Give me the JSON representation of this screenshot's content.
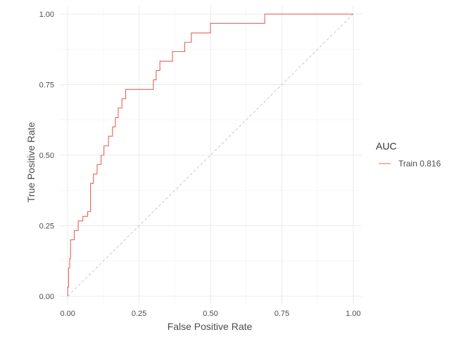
{
  "chart_data": {
    "type": "line",
    "title": "",
    "xlabel": "False Positive Rate",
    "ylabel": "True Positive Rate",
    "xlim": [
      -0.03,
      1.03
    ],
    "ylim": [
      -0.03,
      1.03
    ],
    "x_ticks": [
      0,
      0.25,
      0.5,
      0.75,
      1
    ],
    "y_ticks": [
      0,
      0.25,
      0.5,
      0.75,
      1
    ],
    "x_tick_labels": [
      "0.00",
      "0.25",
      "0.50",
      "0.75",
      "1.00"
    ],
    "y_tick_labels": [
      "0.00",
      "0.25",
      "0.50",
      "0.75",
      "1.00"
    ],
    "grid": true,
    "legend": {
      "title": "AUC",
      "position": "right",
      "entries": [
        "Train 0.816"
      ]
    },
    "reference_line": {
      "x": [
        0,
        1
      ],
      "y": [
        0,
        1
      ],
      "style": "dashed",
      "color": "#bdbdbd"
    },
    "series": [
      {
        "name": "Train 0.816",
        "color": "#e0655a",
        "x": [
          0,
          0,
          0.003,
          0.003,
          0.007,
          0.007,
          0.01,
          0.01,
          0.023,
          0.023,
          0.037,
          0.037,
          0.053,
          0.053,
          0.07,
          0.07,
          0.08,
          0.08,
          0.09,
          0.09,
          0.103,
          0.103,
          0.117,
          0.117,
          0.127,
          0.127,
          0.143,
          0.143,
          0.157,
          0.157,
          0.167,
          0.167,
          0.177,
          0.177,
          0.19,
          0.19,
          0.203,
          0.203,
          0.3,
          0.3,
          0.31,
          0.31,
          0.317,
          0.317,
          0.323,
          0.323,
          0.327,
          0.327,
          0.33,
          0.33,
          0.367,
          0.367,
          0.41,
          0.41,
          0.433,
          0.433,
          0.5,
          0.5,
          0.69,
          0.69,
          1.0
        ],
        "y": [
          0,
          0.033,
          0.033,
          0.1,
          0.1,
          0.133,
          0.133,
          0.2,
          0.2,
          0.233,
          0.233,
          0.267,
          0.267,
          0.283,
          0.283,
          0.3,
          0.3,
          0.4,
          0.4,
          0.433,
          0.433,
          0.467,
          0.467,
          0.5,
          0.5,
          0.533,
          0.533,
          0.567,
          0.567,
          0.6,
          0.6,
          0.633,
          0.633,
          0.667,
          0.667,
          0.7,
          0.7,
          0.733,
          0.733,
          0.767,
          0.767,
          0.8,
          0.8,
          0.8,
          0.8,
          0.833,
          0.833,
          0.833,
          0.833,
          0.833,
          0.833,
          0.867,
          0.867,
          0.9,
          0.9,
          0.933,
          0.933,
          0.967,
          0.967,
          1.0,
          1.0
        ]
      }
    ]
  }
}
